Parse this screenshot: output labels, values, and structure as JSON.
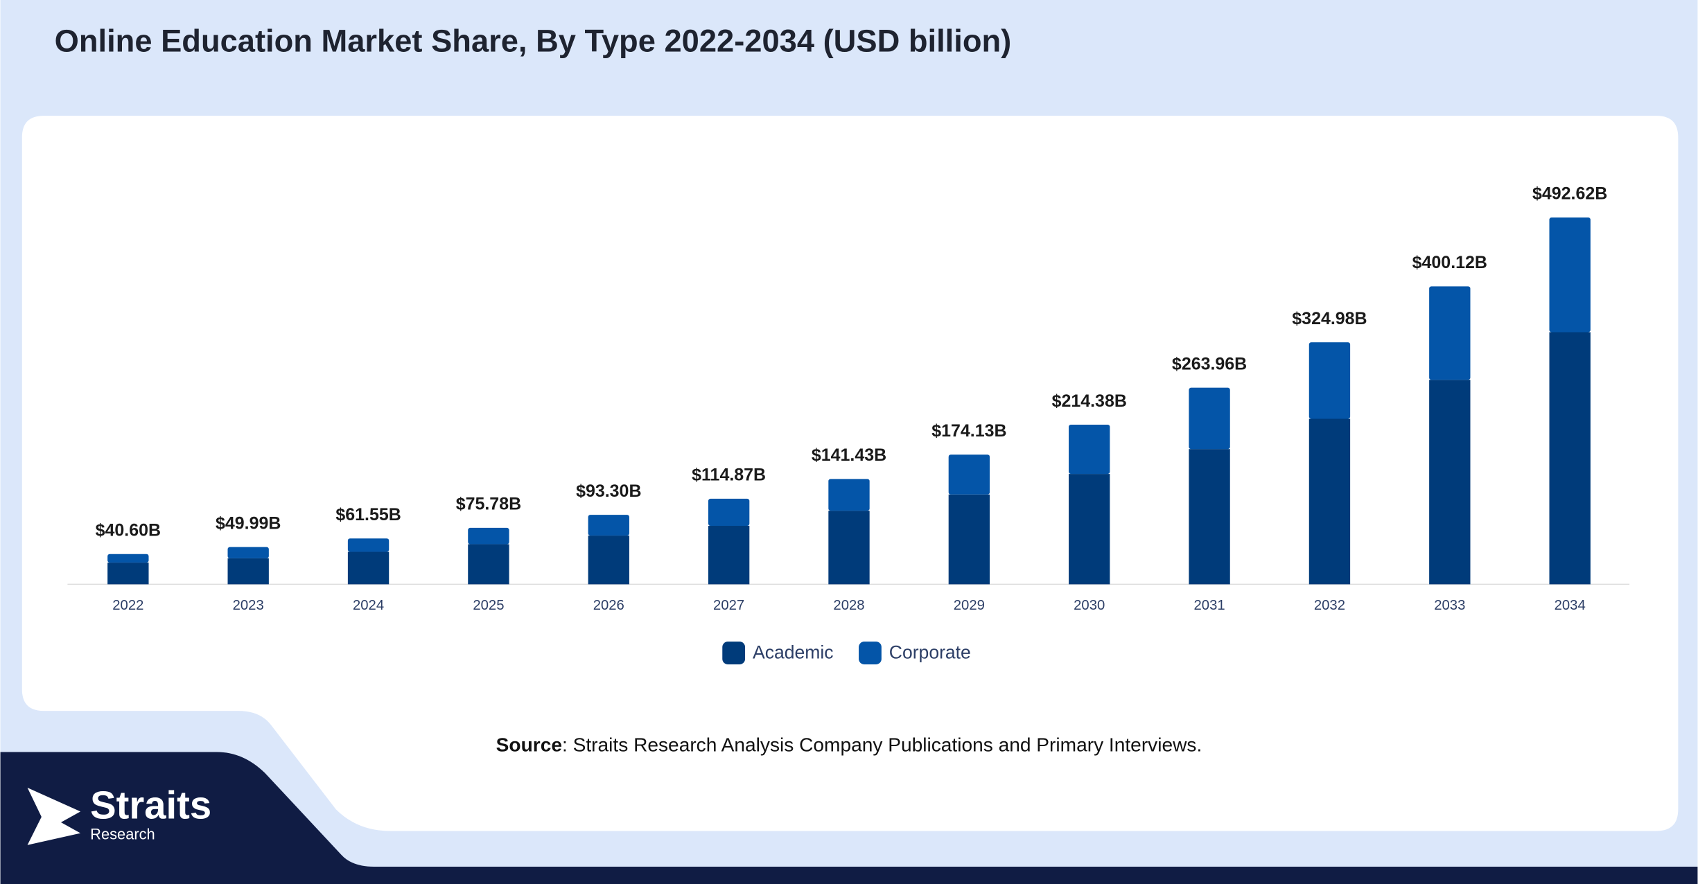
{
  "chart_data": {
    "type": "stacked-bar",
    "title": "Online Education Market Share, By Type 2022-2034 (USD billion)",
    "categories": [
      "2022",
      "2023",
      "2024",
      "2025",
      "2026",
      "2027",
      "2028",
      "2029",
      "2030",
      "2031",
      "2032",
      "2033",
      "2034"
    ],
    "series": [
      {
        "name": "Academic",
        "color": "#003b7a",
        "values": [
          29.1,
          34.9,
          43.6,
          53.8,
          65.4,
          78.5,
          98.8,
          120.6,
          148.2,
          181.6,
          222.3,
          274.6,
          338.6
        ]
      },
      {
        "name": "Corporate",
        "color": "#0455a8",
        "values": [
          11.5,
          15.1,
          17.95,
          21.98,
          27.9,
          36.37,
          42.63,
          53.53,
          66.18,
          82.36,
          102.68,
          125.52,
          154.02
        ]
      }
    ],
    "totals": {
      "values": [
        40.6,
        49.99,
        61.55,
        75.78,
        93.3,
        114.87,
        141.43,
        174.13,
        214.38,
        263.96,
        324.98,
        400.12,
        492.62
      ],
      "value_labels": [
        "$40.60B",
        "$49.99B",
        "$61.55B",
        "$75.78B",
        "$93.30B",
        "$114.87B",
        "$141.43B",
        "$174.13B",
        "$214.38B",
        "$263.96B",
        "$324.98B",
        "$400.12B",
        "$492.62B"
      ]
    },
    "source": {
      "label": "Source",
      "text": ": Straits Research Analysis Company Publications and Primary Interviews."
    }
  },
  "logo": {
    "name": "Straits",
    "sub": "Research"
  }
}
